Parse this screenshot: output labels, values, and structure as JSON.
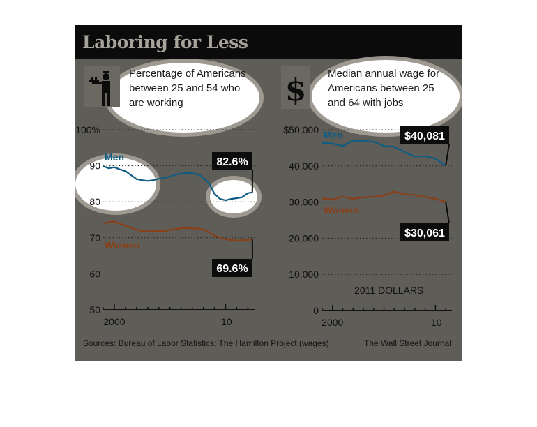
{
  "figure": {
    "title": "Laboring for Less",
    "source": "Sources: Bureau of Labor Statistics; The Hamilton Project (wages)",
    "credit": "The Wall Street Journal"
  },
  "colors": {
    "background": "#5f5d57",
    "title_bar": "#0b0b0b",
    "men": "#0d5c83",
    "men_highlight": "#2a8fc4",
    "women": "#8a3f18",
    "label_box": "#0c0c0c",
    "highlight_cloud": "#ffffff"
  },
  "icons": {
    "left": "waiter-icon",
    "right": "dollar-icon"
  },
  "panels": [
    {
      "description_lines": [
        "Percentage of Americans",
        "between 25 and 54 who",
        "are working"
      ]
    },
    {
      "description_lines": [
        "Median annual wage for",
        "Americans between 25",
        "and 64 with jobs"
      ]
    }
  ],
  "chart_data": [
    {
      "type": "line",
      "title": "Percentage of Americans between 25 and 54 who are working",
      "x_tick_labels": [
        "2000",
        "'10"
      ],
      "y_tick_labels": [
        "100%",
        "90",
        "80",
        "70",
        "60",
        "50"
      ],
      "ylim": [
        50,
        100
      ],
      "xlim": [
        1999,
        2012.6
      ],
      "grid": "dotted horizontal",
      "series": [
        {
          "name": "Men",
          "x": [
            1999.0,
            1999.5,
            2000.0,
            2000.5,
            2001.0,
            2001.5,
            2002.0,
            2002.5,
            2003.0,
            2003.5,
            2004.0,
            2004.5,
            2005.0,
            2005.5,
            2006.0,
            2006.5,
            2007.0,
            2007.5,
            2008.0,
            2008.5,
            2009.0,
            2009.5,
            2010.0,
            2010.5,
            2011.0,
            2011.5,
            2012.0,
            2012.4
          ],
          "values": [
            89.9,
            89.3,
            89.6,
            89.0,
            88.5,
            87.4,
            86.3,
            86.0,
            85.8,
            86.0,
            86.4,
            86.6,
            87.0,
            87.6,
            87.8,
            88.0,
            87.9,
            87.7,
            86.7,
            85.1,
            82.2,
            80.8,
            80.4,
            80.8,
            81.0,
            81.3,
            82.4,
            82.6
          ],
          "end_label": "82.6%"
        },
        {
          "name": "Women",
          "x": [
            1999.0,
            1999.5,
            2000.0,
            2000.5,
            2001.0,
            2001.5,
            2002.0,
            2002.5,
            2003.0,
            2003.5,
            2004.0,
            2004.5,
            2005.0,
            2005.5,
            2006.0,
            2006.5,
            2007.0,
            2007.5,
            2008.0,
            2008.5,
            2009.0,
            2009.5,
            2010.0,
            2010.5,
            2011.0,
            2011.5,
            2012.0,
            2012.4
          ],
          "values": [
            74.0,
            74.3,
            74.5,
            73.9,
            73.4,
            72.8,
            72.2,
            71.9,
            71.8,
            71.8,
            71.9,
            71.9,
            72.2,
            72.4,
            72.7,
            72.7,
            72.6,
            72.6,
            72.3,
            71.6,
            70.6,
            70.0,
            69.6,
            69.4,
            69.2,
            69.3,
            69.4,
            69.6
          ],
          "end_label": "69.6%"
        }
      ]
    },
    {
      "type": "line",
      "title": "Median annual wage for Americans between 25 and 64 with jobs",
      "annotation": "2011 DOLLARS",
      "x_tick_labels": [
        "2000",
        "'10"
      ],
      "y_tick_labels": [
        "$50,000",
        "40,000",
        "30,000",
        "20,000",
        "10,000",
        "0"
      ],
      "ylim": [
        0,
        50000
      ],
      "xlim": [
        1999,
        2011.6
      ],
      "grid": "dotted horizontal",
      "series": [
        {
          "name": "Men",
          "x": [
            1999,
            2000,
            2001,
            2002,
            2003,
            2004,
            2005,
            2006,
            2007,
            2008,
            2009,
            2010,
            2011
          ],
          "values": [
            46400,
            46200,
            45500,
            47000,
            46900,
            46700,
            45500,
            45300,
            43800,
            42600,
            42700,
            42000,
            40081
          ],
          "end_label": "$40,081"
        },
        {
          "name": "Women",
          "x": [
            1999,
            2000,
            2001,
            2002,
            2003,
            2004,
            2005,
            2006,
            2007,
            2008,
            2009,
            2010,
            2011
          ],
          "values": [
            31000,
            30700,
            31500,
            30900,
            31300,
            31500,
            31800,
            32900,
            32100,
            32000,
            31400,
            30900,
            30061
          ],
          "end_label": "$30,061"
        }
      ]
    }
  ]
}
